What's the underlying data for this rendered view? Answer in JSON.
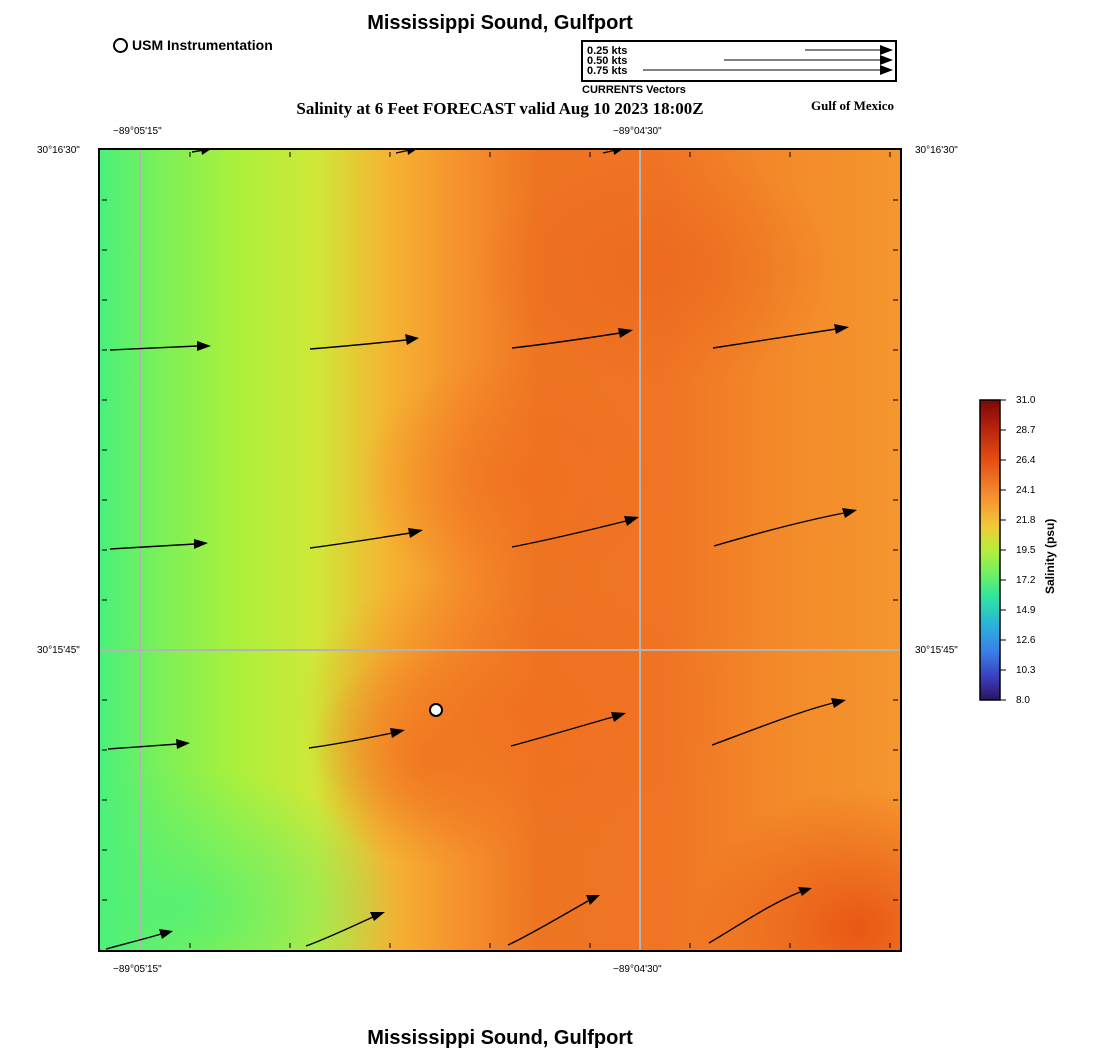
{
  "header": {
    "title": "Mississippi Sound, Gulfport",
    "subtitle": "Salinity at 6 Feet FORECAST valid Aug 10 2023 18:00Z",
    "region_label": "Gulf of Mexico",
    "station_legend": "USM Instrumentation"
  },
  "footer": {
    "title": "Mississippi Sound, Gulfport"
  },
  "vector_legend": {
    "labels": [
      "0.25 kts",
      "0.50 kts",
      "0.75 kts"
    ],
    "speeds": [
      0.25,
      0.5,
      0.75
    ],
    "caption": "CURRENTS Vectors"
  },
  "axes": {
    "x_ticks": [
      "−89°05'15\"",
      "−89°04'30\""
    ],
    "y_ticks": [
      "30°16'30\"",
      "30°15'45\""
    ]
  },
  "colorbar": {
    "title": "Salinity (psu)",
    "ticks": [
      "31.0",
      "28.7",
      "26.4",
      "24.1",
      "21.8",
      "19.5",
      "17.2",
      "14.9",
      "12.6",
      "10.3",
      "8.0"
    ],
    "min": 8.0,
    "max": 31.0
  },
  "colors": {
    "grid": "#b0b0b0",
    "green": "#4cf07a",
    "yellow_green": "#a8f040",
    "orange": "#f5a030",
    "dark_orange": "#ee7020"
  },
  "icons": {
    "station": "open-circle-icon",
    "current_vector": "arrow-icon"
  }
}
